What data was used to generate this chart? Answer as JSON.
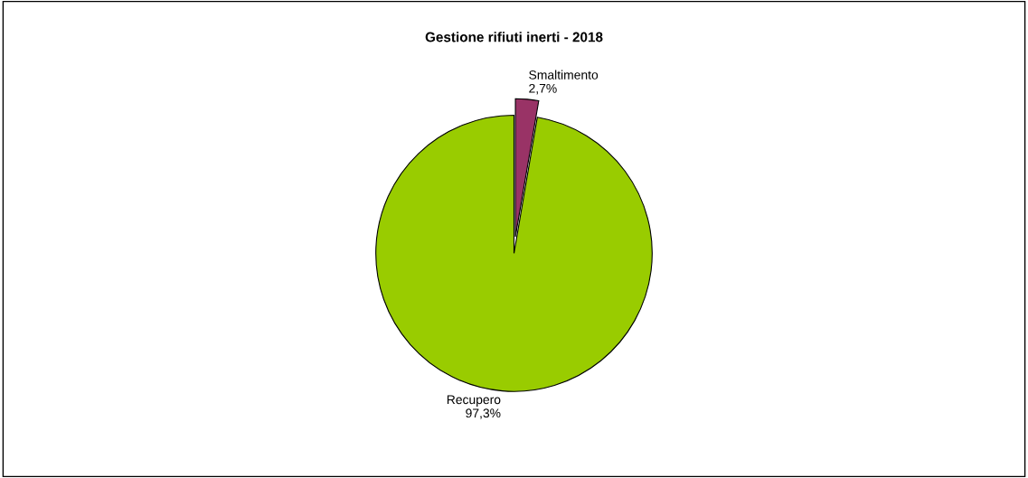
{
  "chart_data": {
    "type": "pie",
    "title": "Gestione rifiuti inerti - 2018",
    "categories": [
      "Smaltimento",
      "Recupero"
    ],
    "values": [
      2.7,
      97.3
    ],
    "colors": [
      "#993366",
      "#99cc00"
    ],
    "value_labels": [
      "2,7%",
      "97,3%"
    ]
  }
}
